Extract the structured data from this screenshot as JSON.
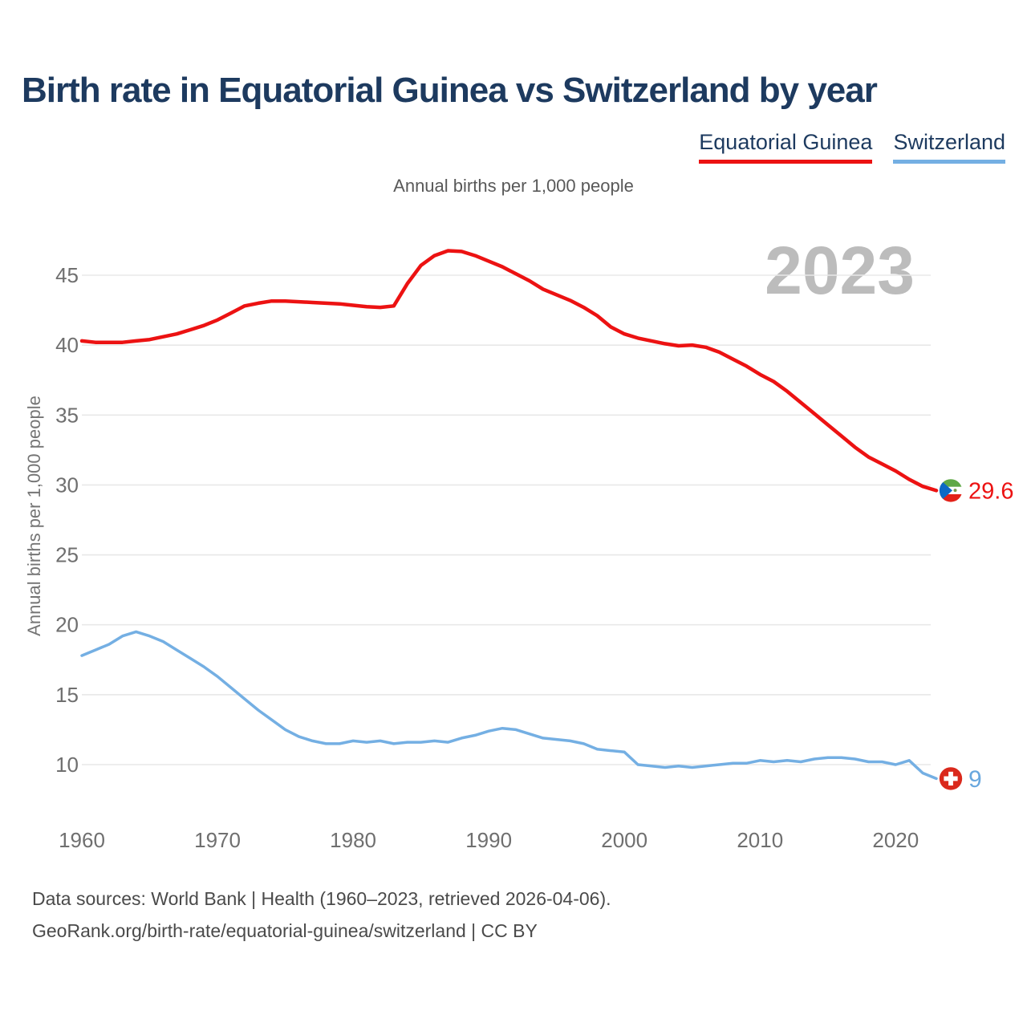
{
  "header": {
    "title": "Birth rate in Equatorial Guinea vs Switzerland by year"
  },
  "subtitle": "Annual births per 1,000 people",
  "y_axis_title": "Annual births per 1,000 people",
  "watermark": "2023",
  "legend": {
    "items": [
      {
        "label": "Equatorial Guinea",
        "color": "#ec1212"
      },
      {
        "label": "Switzerland",
        "color": "#74afe3"
      }
    ]
  },
  "footer": {
    "line1": "Data sources: World Bank | Health (1960–2023, retrieved 2026-04-06).",
    "line2": "GeoRank.org/birth-rate/equatorial-guinea/switzerland | CC BY"
  },
  "chart_data": {
    "type": "line",
    "title": "Birth rate in Equatorial Guinea vs Switzerland by year",
    "subtitle": "Annual births per 1,000 people",
    "ylabel": "Annual births per 1,000 people",
    "xlabel": "",
    "grid": true,
    "legend_position": "top-right",
    "xlim": [
      1960,
      2023
    ],
    "ylim": [
      8,
      47.5
    ],
    "x_ticks": [
      1960,
      1970,
      1980,
      1990,
      2000,
      2010,
      2020
    ],
    "y_ticks": [
      10,
      15,
      20,
      25,
      30,
      35,
      40,
      45
    ],
    "x": [
      1960,
      1961,
      1962,
      1963,
      1964,
      1965,
      1966,
      1967,
      1968,
      1969,
      1970,
      1971,
      1972,
      1973,
      1974,
      1975,
      1976,
      1977,
      1978,
      1979,
      1980,
      1981,
      1982,
      1983,
      1984,
      1985,
      1986,
      1987,
      1988,
      1989,
      1990,
      1991,
      1992,
      1993,
      1994,
      1995,
      1996,
      1997,
      1998,
      1999,
      2000,
      2001,
      2002,
      2003,
      2004,
      2005,
      2006,
      2007,
      2008,
      2009,
      2010,
      2011,
      2012,
      2013,
      2014,
      2015,
      2016,
      2017,
      2018,
      2019,
      2020,
      2021,
      2022,
      2023
    ],
    "series": [
      {
        "name": "Equatorial Guinea",
        "color": "#ec1212",
        "line_width": 4.5,
        "end_label": "29.6",
        "end_value": 29.6,
        "values": [
          40.3,
          40.2,
          40.2,
          40.2,
          40.3,
          40.4,
          40.6,
          40.8,
          41.1,
          41.4,
          41.8,
          42.3,
          42.8,
          43.0,
          43.15,
          43.15,
          43.1,
          43.05,
          43.0,
          42.95,
          42.85,
          42.75,
          42.7,
          42.8,
          44.4,
          45.7,
          46.4,
          46.75,
          46.7,
          46.4,
          46.0,
          45.6,
          45.1,
          44.6,
          44.0,
          43.6,
          43.2,
          42.7,
          42.1,
          41.3,
          40.8,
          40.5,
          40.3,
          40.1,
          39.95,
          40.0,
          39.85,
          39.5,
          39.0,
          38.5,
          37.9,
          37.4,
          36.7,
          35.9,
          35.1,
          34.3,
          33.5,
          32.7,
          32.0,
          31.5,
          31.0,
          30.4,
          29.9,
          29.6
        ]
      },
      {
        "name": "Switzerland",
        "color": "#74afe3",
        "line_width": 3.5,
        "end_label": "9",
        "end_value": 9,
        "values": [
          17.8,
          18.2,
          18.6,
          19.2,
          19.5,
          19.2,
          18.8,
          18.2,
          17.6,
          17.0,
          16.3,
          15.5,
          14.7,
          13.9,
          13.2,
          12.5,
          12.0,
          11.7,
          11.5,
          11.5,
          11.7,
          11.6,
          11.7,
          11.5,
          11.6,
          11.6,
          11.7,
          11.6,
          11.9,
          12.1,
          12.4,
          12.6,
          12.5,
          12.2,
          11.9,
          11.8,
          11.7,
          11.5,
          11.1,
          11.0,
          10.9,
          10.0,
          9.9,
          9.8,
          9.9,
          9.8,
          9.9,
          10.0,
          10.1,
          10.1,
          10.3,
          10.2,
          10.3,
          10.2,
          10.4,
          10.5,
          10.5,
          10.4,
          10.2,
          10.2,
          10.0,
          10.3,
          9.4,
          9.0
        ]
      }
    ]
  },
  "colors": {
    "title": "#1d3a5f",
    "axis_text": "#6f6f6f",
    "gridline": "#e8e8e8",
    "watermark": "#bcbcbc",
    "footer_text": "#4a4a4a",
    "eq_guinea_red": "#ec1212",
    "switzerland_blue": "#74afe3"
  }
}
